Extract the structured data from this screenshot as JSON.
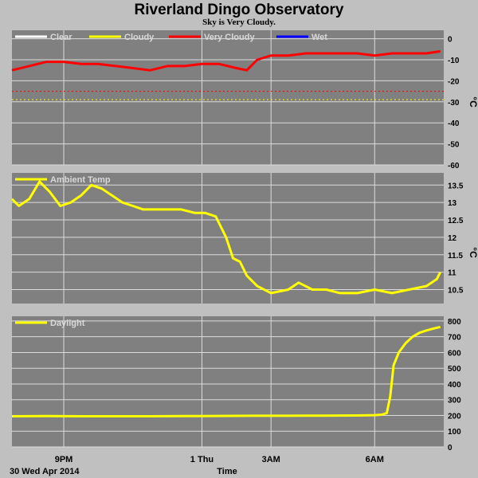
{
  "title": "Riverland Dingo Observatory",
  "subtitle": "Sky is Very Cloudy.",
  "xlabel": "Time",
  "date_label": "30 Wed Apr 2014",
  "x_ticks": [
    {
      "label": "9PM",
      "hour": 21
    },
    {
      "label": "1 Thu",
      "hour": 25
    },
    {
      "label": "3AM",
      "hour": 27
    },
    {
      "label": "6AM",
      "hour": 30
    }
  ],
  "x_range_hours": [
    19.5,
    32.0
  ],
  "colors": {
    "panel_bg": "#808080",
    "page_bg": "#c0c0c0",
    "grid": "#dcdcdc",
    "clear": "#ffffff",
    "cloudy": "#ffff00",
    "very_cloudy": "#ff0000",
    "wet": "#0000ff",
    "threshold_red": "#ff0000",
    "threshold_yellow": "#ffff00"
  },
  "chart_data": [
    {
      "type": "line",
      "panel": "sky",
      "legend": [
        "Clear",
        "Cloudy",
        "Very Cloudy",
        "Wet"
      ],
      "unit": "°C",
      "ylim": [
        -60,
        4
      ],
      "yticks": [
        0,
        -10,
        -20,
        -30,
        -40,
        -50,
        -60
      ],
      "thresholds": [
        {
          "name": "very-cloudy-threshold",
          "value": -25,
          "color": "#ff0000"
        },
        {
          "name": "cloudy-threshold",
          "value": -29,
          "color": "#ffff00"
        }
      ],
      "series": [
        {
          "name": "Very Cloudy",
          "color": "#ff0000",
          "x": [
            19.5,
            20.0,
            20.5,
            21.0,
            21.5,
            22.0,
            22.5,
            23.0,
            23.5,
            24.0,
            24.5,
            25.0,
            25.5,
            26.0,
            26.3,
            26.6,
            27.0,
            27.5,
            28.0,
            28.5,
            29.0,
            29.5,
            30.0,
            30.5,
            31.0,
            31.5,
            31.9
          ],
          "y": [
            -15,
            -13,
            -11,
            -11,
            -12,
            -12,
            -13,
            -14,
            -15,
            -13,
            -13,
            -12,
            -12,
            -14,
            -15,
            -10,
            -8,
            -8,
            -7,
            -7,
            -7,
            -7,
            -8,
            -7,
            -7,
            -7,
            -6
          ]
        }
      ]
    },
    {
      "type": "line",
      "panel": "ambient",
      "legend": [
        "Ambient Temp"
      ],
      "unit": "°C",
      "ylim": [
        10.1,
        13.85
      ],
      "yticks": [
        13.5,
        13.0,
        12.5,
        12.0,
        11.5,
        11.0,
        10.5
      ],
      "series": [
        {
          "name": "Ambient Temp",
          "color": "#ffff00",
          "x": [
            19.5,
            19.7,
            20.0,
            20.3,
            20.6,
            20.9,
            21.2,
            21.5,
            21.8,
            22.1,
            22.4,
            22.7,
            23.0,
            23.3,
            23.6,
            24.0,
            24.4,
            24.8,
            25.1,
            25.4,
            25.7,
            25.9,
            26.1,
            26.3,
            26.6,
            27.0,
            27.5,
            27.8,
            28.2,
            28.6,
            29.0,
            29.5,
            30.0,
            30.5,
            31.0,
            31.5,
            31.8,
            31.9
          ],
          "y": [
            13.1,
            12.9,
            13.1,
            13.6,
            13.3,
            12.9,
            13.0,
            13.2,
            13.5,
            13.4,
            13.2,
            13.0,
            12.9,
            12.8,
            12.8,
            12.8,
            12.8,
            12.7,
            12.7,
            12.6,
            12.0,
            11.4,
            11.3,
            10.9,
            10.6,
            10.4,
            10.5,
            10.7,
            10.5,
            10.5,
            10.4,
            10.4,
            10.5,
            10.4,
            10.5,
            10.6,
            10.8,
            11.0
          ]
        }
      ]
    },
    {
      "type": "line",
      "panel": "daylight",
      "legend": [
        "Daylight"
      ],
      "unit": "",
      "ylim": [
        0,
        830
      ],
      "yticks": [
        800,
        700,
        600,
        500,
        400,
        300,
        200,
        100,
        0
      ],
      "series": [
        {
          "name": "Daylight",
          "color": "#ffff00",
          "x": [
            19.5,
            20.5,
            21.5,
            22.5,
            23.5,
            24.5,
            25.5,
            26.5,
            27.5,
            28.5,
            29.5,
            30.0,
            30.2,
            30.35,
            30.45,
            30.55,
            30.7,
            30.9,
            31.1,
            31.3,
            31.5,
            31.7,
            31.9
          ],
          "y": [
            195,
            196,
            195,
            195,
            195,
            196,
            197,
            198,
            198,
            199,
            200,
            202,
            205,
            215,
            320,
            520,
            600,
            660,
            700,
            725,
            740,
            752,
            762
          ]
        }
      ]
    }
  ]
}
